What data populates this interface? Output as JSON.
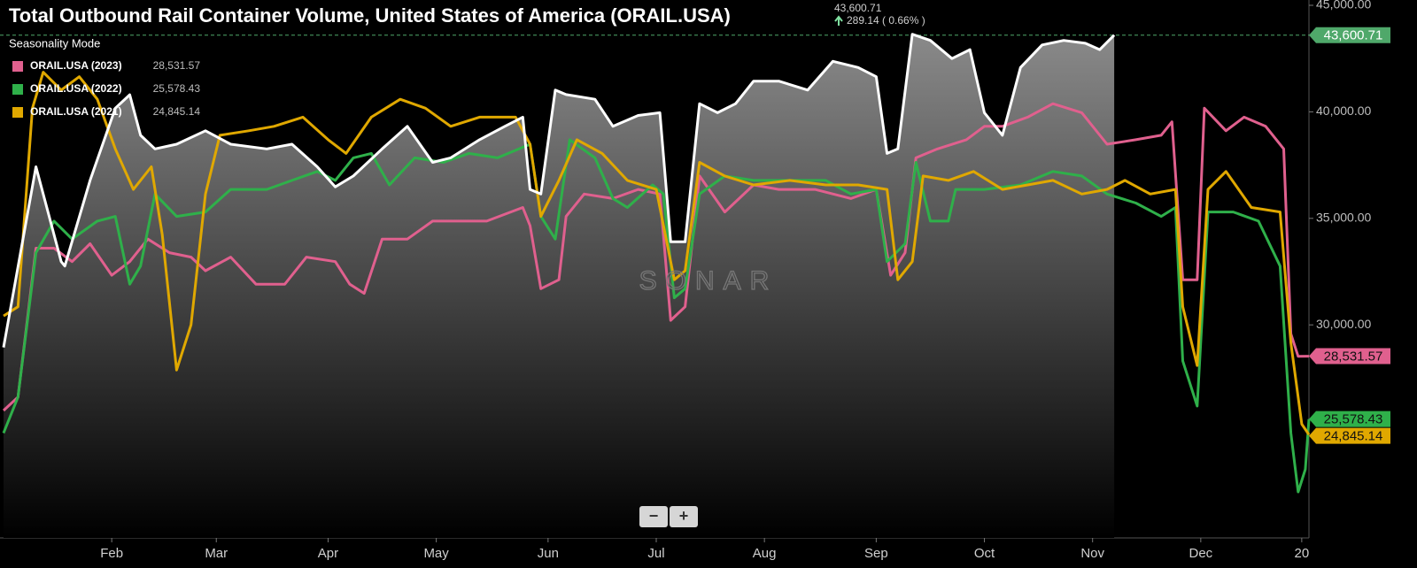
{
  "chart_data": {
    "type": "line",
    "title": "Total Outbound Rail Container Volume, United States of America (ORAIL.USA)",
    "subtitle": "Seasonality Mode",
    "change": "289.14 ( 0.66% )",
    "watermark": "SONAR",
    "controls": [
      "−",
      "+"
    ],
    "xlim": [
      1,
      363
    ],
    "ylim": [
      20000,
      45000
    ],
    "xticks": [
      {
        "value": 31,
        "label": "Feb"
      },
      {
        "value": 60,
        "label": "Mar"
      },
      {
        "value": 91,
        "label": "Apr"
      },
      {
        "value": 121,
        "label": "May"
      },
      {
        "value": 152,
        "label": "Jun"
      },
      {
        "value": 182,
        "label": "Jul"
      },
      {
        "value": 212,
        "label": "Aug"
      },
      {
        "value": 243,
        "label": "Sep"
      },
      {
        "value": 273,
        "label": "Oct"
      },
      {
        "value": 303,
        "label": "Nov"
      },
      {
        "value": 333,
        "label": "Dec"
      },
      {
        "value": 361,
        "label": "20"
      }
    ],
    "yticks": [
      {
        "value": 30000,
        "label": "30,000.00"
      },
      {
        "value": 35000,
        "label": "35,000.00"
      },
      {
        "value": 40000,
        "label": "40,000.00"
      },
      {
        "value": 45000,
        "label": "45,000.00"
      }
    ],
    "series": [
      {
        "color": "#ffffff",
        "area": true,
        "last_label": "43,600.71",
        "x": [
          1,
          10,
          17,
          18,
          25,
          32,
          36,
          39,
          43,
          49,
          57,
          64,
          74,
          81,
          88,
          93,
          98,
          106,
          113,
          120,
          125,
          133,
          140,
          145,
          147,
          150,
          154,
          157,
          165,
          170,
          177,
          183,
          186,
          190,
          194,
          199,
          204,
          209,
          216,
          224,
          231,
          238,
          243,
          246,
          249,
          253,
          258,
          264,
          269,
          273,
          278,
          283,
          289,
          295,
          301,
          305,
          309
        ],
        "values": [
          28940,
          37420,
          32970,
          32760,
          36780,
          40170,
          40800,
          38900,
          38260,
          38480,
          39110,
          38480,
          38260,
          38480,
          37420,
          36480,
          36990,
          38260,
          39320,
          37630,
          37840,
          38690,
          39320,
          39750,
          36360,
          36140,
          41020,
          40810,
          40590,
          39320,
          39830,
          39960,
          33900,
          33900,
          40380,
          39960,
          40380,
          41440,
          41440,
          41020,
          42370,
          42080,
          41650,
          38050,
          38260,
          43640,
          43350,
          42500,
          42920,
          39960,
          38900,
          42080,
          43140,
          43350,
          43220,
          42920,
          43600.71
        ]
      },
      {
        "name": "ORAIL.USA (2023)",
        "color": "#e0608e",
        "last_label": "28,531.57",
        "x": [
          1,
          5,
          10,
          15,
          20,
          25,
          31,
          36,
          41,
          47,
          53,
          57,
          64,
          71,
          79,
          85,
          93,
          97,
          101,
          106,
          113,
          120,
          128,
          135,
          145,
          147,
          150,
          155,
          157,
          162,
          170,
          177,
          183,
          186,
          190,
          194,
          201,
          209,
          216,
          226,
          236,
          243,
          247,
          251,
          254,
          260,
          268,
          273,
          278,
          285,
          292,
          300,
          307,
          315,
          322,
          325,
          328,
          332,
          334,
          340,
          345,
          351,
          356,
          358,
          360,
          363
        ],
        "values": [
          25980,
          26610,
          33600,
          33600,
          32970,
          33810,
          32330,
          32970,
          34030,
          33390,
          33180,
          32540,
          33180,
          31910,
          31910,
          33180,
          32970,
          31910,
          31480,
          34030,
          34030,
          34870,
          34870,
          34870,
          35510,
          34660,
          31700,
          32120,
          35090,
          36140,
          35930,
          36360,
          36140,
          30210,
          30850,
          36990,
          35300,
          36570,
          36360,
          36360,
          35930,
          36360,
          32330,
          33390,
          37840,
          38260,
          38690,
          39320,
          39320,
          39750,
          40380,
          39960,
          38480,
          38690,
          38900,
          39530,
          32120,
          32120,
          40170,
          39110,
          39750,
          39320,
          38260,
          29580,
          28520,
          28531.57
        ]
      },
      {
        "name": "ORAIL.USA (2022)",
        "color": "#2fb04a",
        "last_label": "25,578.43",
        "x": [
          1,
          5,
          10,
          15,
          20,
          27,
          32,
          36,
          39,
          43,
          49,
          57,
          64,
          74,
          81,
          88,
          93,
          98,
          103,
          108,
          115,
          123,
          130,
          138,
          147,
          150,
          154,
          158,
          165,
          170,
          174,
          181,
          184,
          187,
          190,
          194,
          201,
          209,
          219,
          229,
          236,
          243,
          246,
          251,
          254,
          258,
          263,
          265,
          273,
          283,
          292,
          300,
          307,
          315,
          322,
          326,
          328,
          332,
          335,
          342,
          349,
          355,
          358,
          360,
          362,
          363
        ],
        "values": [
          24920,
          26610,
          33390,
          34870,
          34030,
          34870,
          35090,
          31910,
          32760,
          36140,
          35090,
          35300,
          36360,
          36360,
          36780,
          37200,
          36780,
          37840,
          38050,
          36570,
          37840,
          37630,
          38050,
          37840,
          38480,
          35090,
          34030,
          38690,
          37840,
          35930,
          35510,
          36570,
          36140,
          31270,
          31700,
          36140,
          36990,
          36780,
          36780,
          36780,
          36140,
          36360,
          32970,
          33810,
          37630,
          34870,
          34870,
          36360,
          36360,
          36570,
          37200,
          36990,
          36140,
          35720,
          35090,
          35510,
          28310,
          26190,
          35300,
          35300,
          34870,
          32760,
          24920,
          22160,
          23220,
          25578.43
        ]
      },
      {
        "name": "ORAIL.USA (2021)",
        "color": "#e0a800",
        "last_label": "24,845.14",
        "x": [
          1,
          5,
          9,
          12,
          17,
          22,
          27,
          32,
          37,
          42,
          45,
          49,
          53,
          57,
          61,
          69,
          76,
          84,
          91,
          96,
          103,
          111,
          118,
          125,
          133,
          143,
          147,
          150,
          155,
          160,
          167,
          174,
          182,
          187,
          190,
          194,
          201,
          209,
          219,
          229,
          238,
          246,
          249,
          253,
          256,
          263,
          270,
          278,
          285,
          292,
          300,
          307,
          312,
          319,
          326,
          328,
          332,
          335,
          340,
          347,
          355,
          358,
          361,
          363
        ],
        "values": [
          30420,
          30850,
          40170,
          41860,
          41020,
          41650,
          40590,
          38260,
          36360,
          37420,
          34240,
          27880,
          30000,
          36140,
          38900,
          39110,
          39320,
          39750,
          38690,
          38050,
          39750,
          40590,
          40170,
          39320,
          39750,
          39750,
          38480,
          35090,
          36780,
          38690,
          38050,
          36780,
          36360,
          32120,
          32540,
          37630,
          36990,
          36570,
          36780,
          36570,
          36570,
          36360,
          32120,
          32970,
          36990,
          36780,
          37200,
          36360,
          36570,
          36780,
          36140,
          36360,
          36780,
          36140,
          36360,
          30850,
          28090,
          36360,
          37200,
          35510,
          35300,
          29150,
          25340,
          24845.14
        ]
      }
    ]
  }
}
